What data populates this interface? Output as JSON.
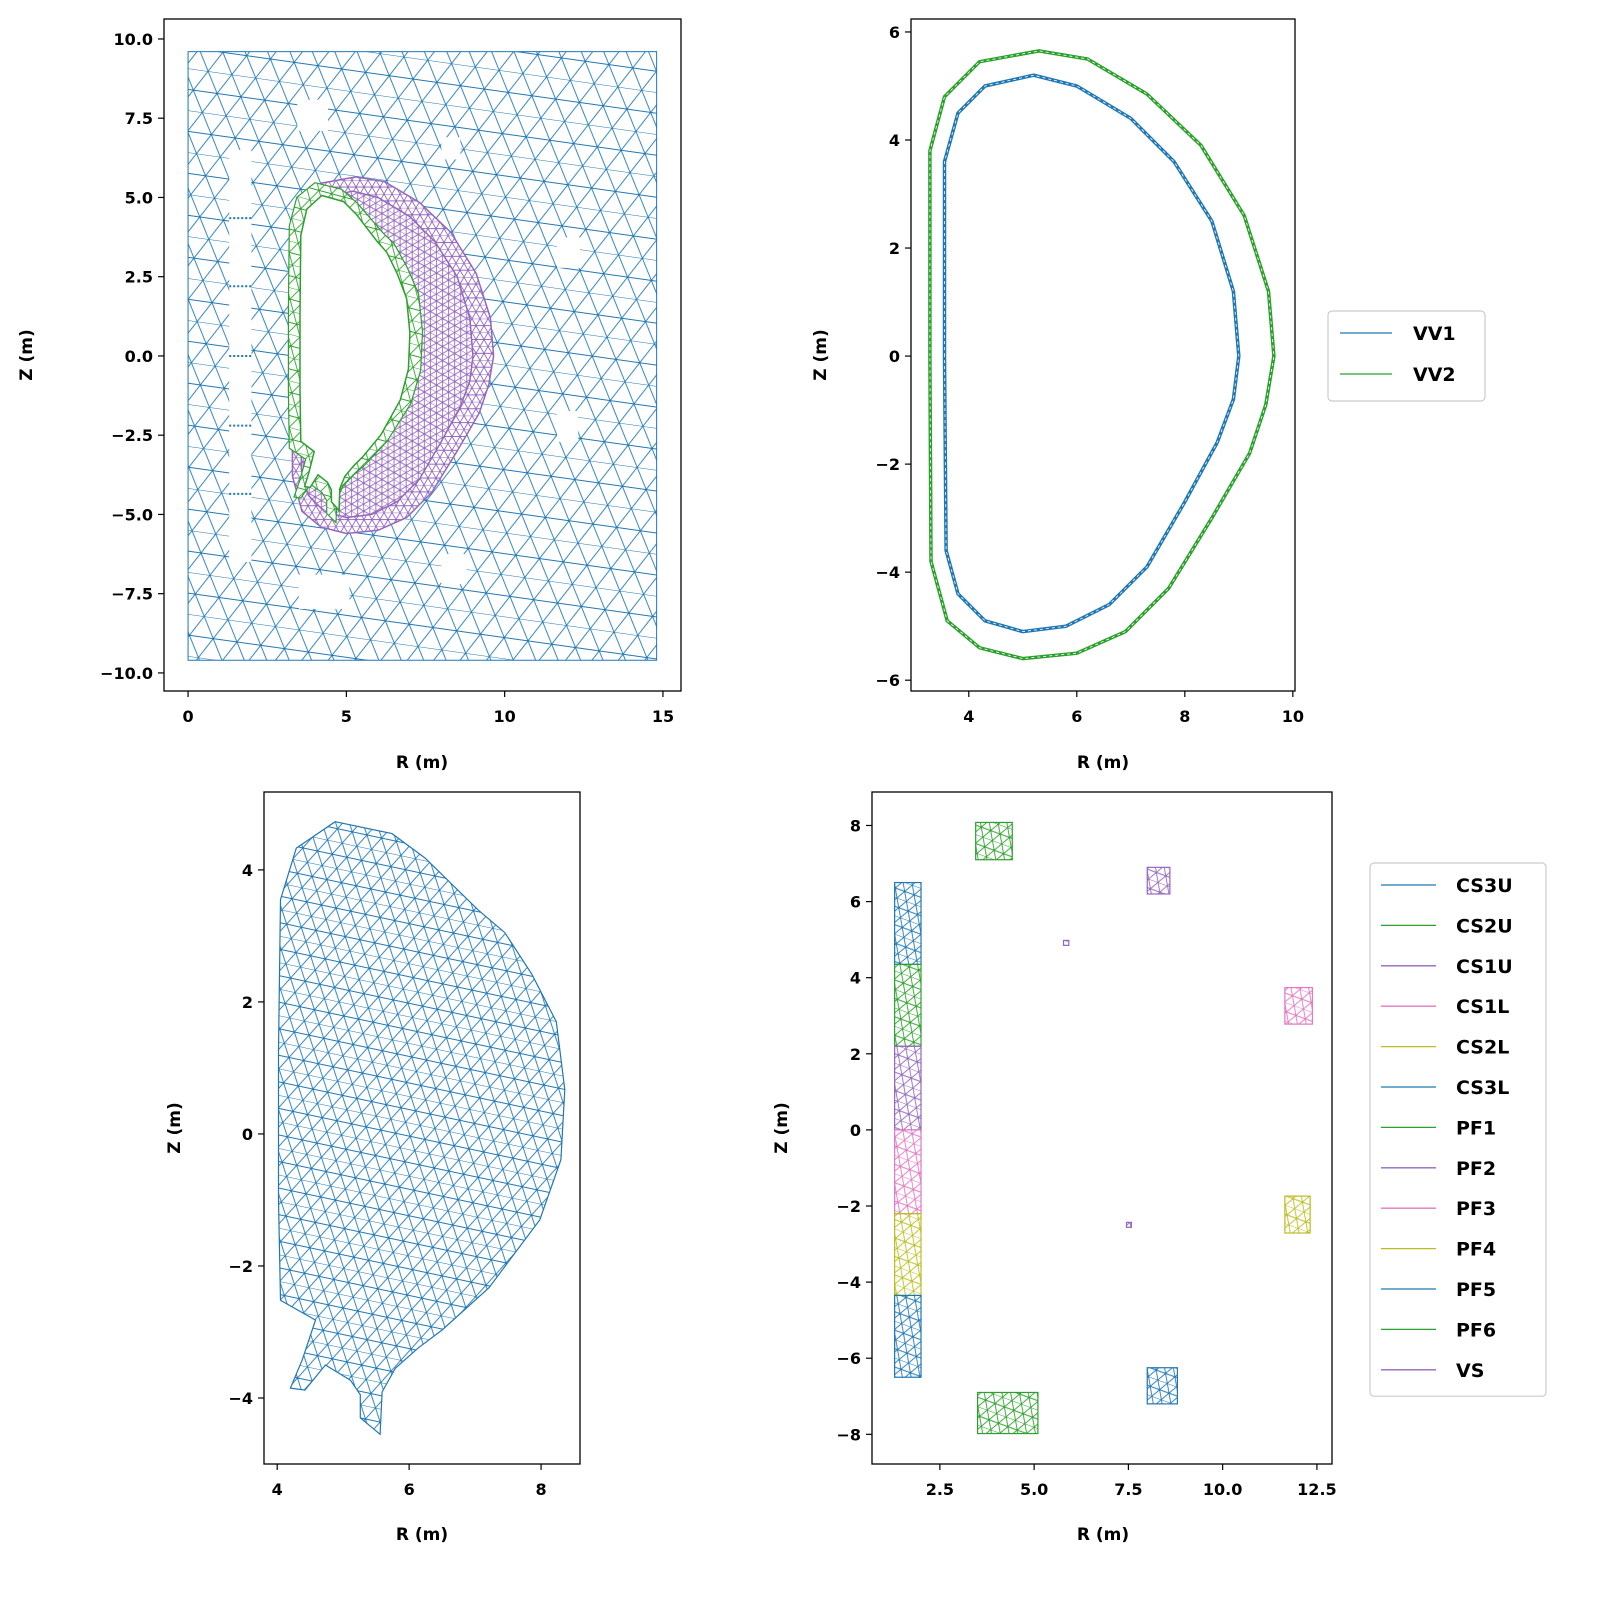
{
  "colors": {
    "blue": "#1f77b4",
    "green": "#2ca02c",
    "purple": "#9467bd",
    "pink": "#e377c2",
    "olive": "#bcbd22"
  },
  "chart_data": [
    {
      "id": "full-mesh",
      "type": "mesh",
      "xlabel": "R (m)",
      "ylabel": "Z (m)",
      "xlim": [
        -0.76,
        15.57
      ],
      "ylim": [
        -10.57,
        10.63
      ],
      "xticks": [
        0,
        5,
        10,
        15
      ],
      "xticklabels": [
        "0",
        "5",
        "10",
        "15"
      ],
      "yticks": [
        10,
        7.5,
        5,
        2.5,
        0,
        -2.5,
        -5,
        -7.5,
        -10
      ],
      "yticklabels": [
        "10.0",
        "7.5",
        "5.0",
        "2.5",
        "0.0",
        "−2.5",
        "−5.0",
        "−7.5",
        "−10.0"
      ],
      "domain": {
        "r": [
          0,
          14.8
        ],
        "z": [
          -9.6,
          9.6
        ]
      }
    },
    {
      "id": "vacuum-vessel",
      "type": "line",
      "xlabel": "R (m)",
      "ylabel": "Z (m)",
      "xlim": [
        2.93,
        10.04
      ],
      "ylim": [
        -6.2,
        6.24
      ],
      "xticks": [
        4,
        6,
        8,
        10
      ],
      "xticklabels": [
        "4",
        "6",
        "8",
        "10"
      ],
      "yticks": [
        6,
        4,
        2,
        0,
        -2,
        -4,
        -6
      ],
      "yticklabels": [
        "6",
        "4",
        "2",
        "0",
        "−2",
        "−4",
        "−6"
      ],
      "legend": {
        "placement": "outside-right",
        "entries": [
          {
            "label": "VV1",
            "color": "#1f77b4"
          },
          {
            "label": "VV2",
            "color": "#2ca02c"
          }
        ]
      },
      "series": [
        {
          "name": "VV1",
          "color": "#1f77b4",
          "points": [
            [
              3.55,
              0
            ],
            [
              3.55,
              3.6
            ],
            [
              3.8,
              4.5
            ],
            [
              4.3,
              5.0
            ],
            [
              5.2,
              5.2
            ],
            [
              6.0,
              5.0
            ],
            [
              7.0,
              4.4
            ],
            [
              7.8,
              3.6
            ],
            [
              8.5,
              2.5
            ],
            [
              8.9,
              1.2
            ],
            [
              9.0,
              0
            ],
            [
              8.9,
              -0.8
            ],
            [
              8.6,
              -1.6
            ],
            [
              8.0,
              -2.7
            ],
            [
              7.3,
              -3.9
            ],
            [
              6.6,
              -4.6
            ],
            [
              5.8,
              -5.0
            ],
            [
              5.0,
              -5.1
            ],
            [
              4.3,
              -4.9
            ],
            [
              3.8,
              -4.4
            ],
            [
              3.58,
              -3.6
            ]
          ]
        },
        {
          "name": "VV2",
          "color": "#2ca02c",
          "points": [
            [
              3.28,
              0
            ],
            [
              3.28,
              3.8
            ],
            [
              3.55,
              4.8
            ],
            [
              4.2,
              5.45
            ],
            [
              5.3,
              5.65
            ],
            [
              6.2,
              5.5
            ],
            [
              7.3,
              4.85
            ],
            [
              8.3,
              3.9
            ],
            [
              9.1,
              2.6
            ],
            [
              9.55,
              1.2
            ],
            [
              9.65,
              0
            ],
            [
              9.5,
              -0.9
            ],
            [
              9.2,
              -1.8
            ],
            [
              8.5,
              -3.0
            ],
            [
              7.7,
              -4.3
            ],
            [
              6.9,
              -5.1
            ],
            [
              6.0,
              -5.5
            ],
            [
              5.0,
              -5.6
            ],
            [
              4.2,
              -5.4
            ],
            [
              3.6,
              -4.9
            ],
            [
              3.3,
              -3.8
            ]
          ]
        }
      ]
    },
    {
      "id": "plasma-mesh",
      "type": "mesh",
      "xlabel": "R (m)",
      "ylabel": "Z (m)",
      "xlim": [
        3.8,
        8.59
      ],
      "ylim": [
        -5.0,
        5.18
      ],
      "xticks": [
        4,
        6,
        8
      ],
      "xticklabels": [
        "4",
        "6",
        "8"
      ],
      "yticks": [
        4,
        2,
        0,
        -2,
        -4
      ],
      "yticklabels": [
        "4",
        "2",
        "0",
        "−2",
        "−4"
      ],
      "boundary": [
        [
          4.88,
          4.73
        ],
        [
          5.74,
          4.55
        ],
        [
          6.24,
          4.18
        ],
        [
          7.05,
          3.39
        ],
        [
          7.45,
          3.05
        ],
        [
          7.86,
          2.42
        ],
        [
          8.23,
          1.7
        ],
        [
          8.36,
          0.67
        ],
        [
          8.3,
          -0.39
        ],
        [
          7.98,
          -1.3
        ],
        [
          7.21,
          -2.33
        ],
        [
          6.5,
          -2.97
        ],
        [
          6.14,
          -3.24
        ],
        [
          5.79,
          -3.55
        ],
        [
          5.59,
          -3.91
        ],
        [
          5.56,
          -4.55
        ],
        [
          5.26,
          -4.3
        ],
        [
          5.26,
          -3.95
        ],
        [
          5.11,
          -3.73
        ],
        [
          4.73,
          -3.5
        ],
        [
          4.42,
          -3.88
        ],
        [
          4.2,
          -3.85
        ],
        [
          4.38,
          -3.42
        ],
        [
          4.58,
          -2.82
        ],
        [
          4.05,
          -2.52
        ],
        [
          4.02,
          -1.0
        ],
        [
          4.02,
          1.27
        ],
        [
          4.05,
          3.55
        ],
        [
          4.29,
          4.33
        ]
      ]
    },
    {
      "id": "coils",
      "type": "mesh",
      "xlabel": "R (m)",
      "ylabel": "Z (m)",
      "xlim": [
        0.7,
        12.9
      ],
      "ylim": [
        -8.78,
        8.88
      ],
      "xticks": [
        2.5,
        5,
        7.5,
        10,
        12.5
      ],
      "xticklabels": [
        "2.5",
        "5.0",
        "7.5",
        "10.0",
        "12.5"
      ],
      "yticks": [
        8,
        6,
        4,
        2,
        0,
        -2,
        -4,
        -6,
        -8
      ],
      "yticklabels": [
        "8",
        "6",
        "4",
        "2",
        "0",
        "−2",
        "−4",
        "−6",
        "−8"
      ],
      "legend": {
        "placement": "outside-right",
        "entries": [
          {
            "label": "CS3U",
            "color": "#1f77b4"
          },
          {
            "label": "CS2U",
            "color": "#2ca02c"
          },
          {
            "label": "CS1U",
            "color": "#9467bd"
          },
          {
            "label": "CS1L",
            "color": "#e377c2"
          },
          {
            "label": "CS2L",
            "color": "#bcbd22"
          },
          {
            "label": "CS3L",
            "color": "#1f77b4"
          },
          {
            "label": "PF1",
            "color": "#2ca02c"
          },
          {
            "label": "PF2",
            "color": "#9467bd"
          },
          {
            "label": "PF3",
            "color": "#e377c2"
          },
          {
            "label": "PF4",
            "color": "#bcbd22"
          },
          {
            "label": "PF5",
            "color": "#1f77b4"
          },
          {
            "label": "PF6",
            "color": "#2ca02c"
          },
          {
            "label": "VS",
            "color": "#9467bd"
          }
        ]
      },
      "coils": [
        {
          "name": "CS3U",
          "color": "#1f77b4",
          "r": [
            1.3,
            2.0
          ],
          "z": [
            4.35,
            6.5
          ]
        },
        {
          "name": "CS2U",
          "color": "#2ca02c",
          "r": [
            1.3,
            2.0
          ],
          "z": [
            2.2,
            4.35
          ]
        },
        {
          "name": "CS1U",
          "color": "#9467bd",
          "r": [
            1.3,
            2.0
          ],
          "z": [
            0,
            2.2
          ]
        },
        {
          "name": "CS1L",
          "color": "#e377c2",
          "r": [
            1.3,
            2.0
          ],
          "z": [
            -2.2,
            0
          ]
        },
        {
          "name": "CS2L",
          "color": "#bcbd22",
          "r": [
            1.3,
            2.0
          ],
          "z": [
            -4.35,
            -2.2
          ]
        },
        {
          "name": "CS3L",
          "color": "#1f77b4",
          "r": [
            1.3,
            2.0
          ],
          "z": [
            -6.5,
            -4.35
          ]
        },
        {
          "name": "PF1",
          "color": "#2ca02c",
          "r": [
            3.45,
            4.42
          ],
          "z": [
            7.1,
            8.08
          ]
        },
        {
          "name": "PF2",
          "color": "#9467bd",
          "r": [
            8.0,
            8.6
          ],
          "z": [
            6.2,
            6.9
          ]
        },
        {
          "name": "PF3",
          "color": "#e377c2",
          "r": [
            11.65,
            12.38
          ],
          "z": [
            2.78,
            3.74
          ]
        },
        {
          "name": "PF4",
          "color": "#bcbd22",
          "r": [
            11.65,
            12.32
          ],
          "z": [
            -2.71,
            -1.74
          ]
        },
        {
          "name": "PF5",
          "color": "#1f77b4",
          "r": [
            8.0,
            8.8
          ],
          "z": [
            -7.2,
            -6.25
          ]
        },
        {
          "name": "PF6",
          "color": "#2ca02c",
          "r": [
            3.5,
            5.1
          ],
          "z": [
            -7.98,
            -6.9
          ]
        },
        {
          "name": "VS",
          "color": "#9467bd",
          "r": [
            5.78,
            5.92
          ],
          "z": [
            4.85,
            4.98
          ]
        },
        {
          "name": "VS",
          "color": "#9467bd",
          "r": [
            7.45,
            7.58
          ],
          "z": [
            -2.56,
            -2.43
          ]
        }
      ]
    }
  ]
}
